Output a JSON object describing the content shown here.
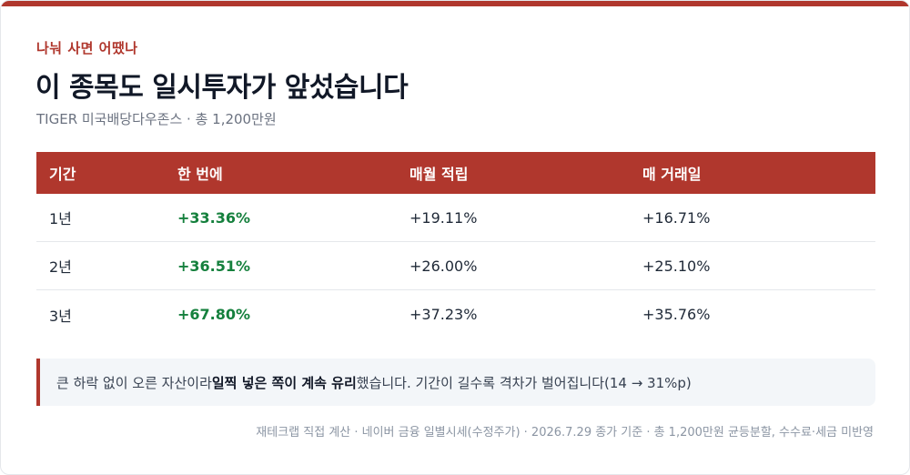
{
  "colors": {
    "accent": "#b0372d",
    "positive": "#15803d"
  },
  "header": {
    "eyebrow": "나눠 사면 어땠나",
    "title": "이 종목도 일시투자가 앞섰습니다",
    "subtitle": "TIGER 미국배당다우존스 · 총 1,200만원"
  },
  "table": {
    "columns": [
      "기간",
      "한 번에",
      "매월 적립",
      "매 거래일"
    ],
    "rows": [
      {
        "period": "1년",
        "lump_sum": "+33.36%",
        "monthly": "+19.11%",
        "daily": "+16.71%"
      },
      {
        "period": "2년",
        "lump_sum": "+36.51%",
        "monthly": "+26.00%",
        "daily": "+25.10%"
      },
      {
        "period": "3년",
        "lump_sum": "+67.80%",
        "monthly": "+37.23%",
        "daily": "+35.76%"
      }
    ]
  },
  "note": {
    "prefix": "큰 하락 없이 오른 자산이라 ",
    "emphasis": "일찍 넣은 쪽이 계속 유리",
    "suffix": "했습니다. 기간이 길수록 격차가 벌어집니다(14 → 31%p)"
  },
  "footer": "재테크랩 직접 계산 · 네이버 금융 일별시세(수정주가) · 2026.7.29 종가 기준 · 총 1,200만원 균등분할, 수수료·세금 미반영"
}
